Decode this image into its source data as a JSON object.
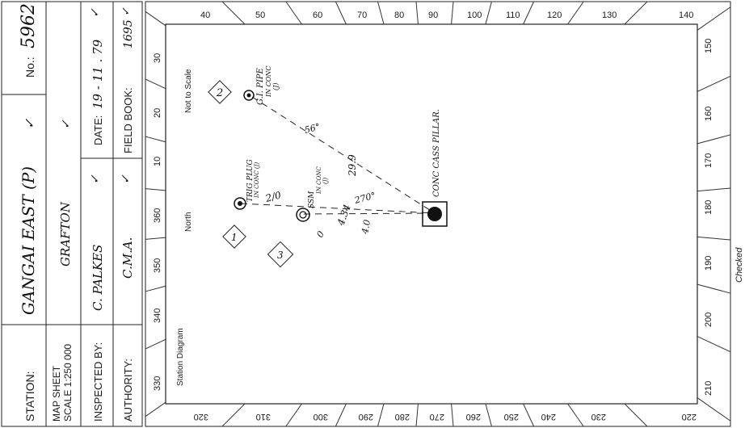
{
  "form": {
    "station_label": "STATION:",
    "station_value": "GANGAI EAST (P)",
    "station_tick": "✓",
    "number_label": "No.:",
    "number_value": "5962",
    "map_sheet_line1": "MAP SHEET",
    "map_sheet_line2": "SCALE 1:250 000",
    "map_sheet_value": "GRAFTON",
    "map_sheet_tick": "✓",
    "inspected_label": "INSPECTED BY:",
    "inspected_value": "C. PALKES",
    "inspected_tick": "✓",
    "date_label": "DATE:",
    "date_value": "19 - 11 . 79",
    "date_tick": "✓",
    "authority_label": "AUTHORITY:",
    "authority_value": "C.M.A.",
    "authority_tick": "✓",
    "fieldbook_label": "FIELD BOOK:",
    "fieldbook_value": "1695",
    "fieldbook_tick": "✓"
  },
  "diagram": {
    "title": "Station Diagram",
    "not_to_scale": "Not to Scale",
    "north_label": "North",
    "checked_label": "Checked",
    "top_ticks": [
      "40",
      "50",
      "60",
      "70",
      "80",
      "90",
      "100",
      "110",
      "120",
      "130",
      "140"
    ],
    "right_ticks": [
      "150",
      "160",
      "170",
      "180",
      "190",
      "200",
      "210"
    ],
    "bottom_ticks": [
      "220",
      "230",
      "240",
      "250",
      "260",
      "270",
      "280",
      "290",
      "300",
      "310",
      "320"
    ],
    "left_ticks": [
      "330",
      "340",
      "350",
      "360",
      "10",
      "20",
      "30"
    ],
    "mark_labels": {
      "mark2_number": "2",
      "mark2_text_1": "G.I. PIPE",
      "mark2_text_2": "IN CONC",
      "mark2_text_3": "(J)",
      "mark1_number": "1",
      "mark1_text_1": "TRIG PLUG",
      "mark1_text_2": "IN CONC (J)",
      "mark3_number": "3",
      "mark3_text_1": "SSM",
      "mark3_text_2": "IN CONC",
      "mark3_text_3": "(J)",
      "pillar_text": "CONC CASS PILLAR.",
      "dist_top": "29.9",
      "bearing_top": "56°",
      "bearing_mark1": "2/0",
      "dist_mark3": "4.34",
      "bearing_mark3": "270°",
      "dist_mark3_b": "4.0",
      "deg_mark3": "0"
    }
  }
}
